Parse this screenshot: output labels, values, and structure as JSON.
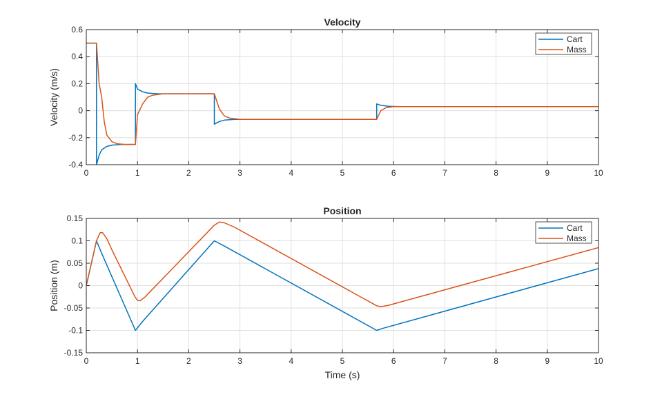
{
  "chart_data": [
    {
      "type": "line",
      "title": "Velocity",
      "xlabel": "",
      "ylabel": "Velocity (m/s)",
      "xlim": [
        0,
        10
      ],
      "ylim": [
        -0.4,
        0.6
      ],
      "xticks": [
        0,
        1,
        2,
        3,
        4,
        5,
        6,
        7,
        8,
        9,
        10
      ],
      "yticks": [
        -0.4,
        -0.2,
        0,
        0.2,
        0.4,
        0.6
      ],
      "yticklabels": [
        "-0.4",
        "-0.2",
        "0",
        "0.2",
        "0.4",
        "0.6"
      ],
      "grid": true,
      "legend": "top-right",
      "series": [
        {
          "name": "Cart",
          "color": "#0072BD",
          "points": [
            [
              0,
              0.5
            ],
            [
              0.2,
              0.5
            ],
            [
              0.2,
              -0.4
            ],
            [
              0.25,
              -0.33
            ],
            [
              0.3,
              -0.29
            ],
            [
              0.4,
              -0.265
            ],
            [
              0.5,
              -0.255
            ],
            [
              0.7,
              -0.25
            ],
            [
              0.96,
              -0.25
            ],
            [
              0.96,
              0.2
            ],
            [
              1.0,
              0.16
            ],
            [
              1.1,
              0.14
            ],
            [
              1.2,
              0.13
            ],
            [
              1.4,
              0.125
            ],
            [
              2.5,
              0.125
            ],
            [
              2.5,
              -0.1
            ],
            [
              2.6,
              -0.08
            ],
            [
              2.7,
              -0.07
            ],
            [
              2.9,
              -0.065
            ],
            [
              5.67,
              -0.065
            ],
            [
              5.67,
              0.05
            ],
            [
              5.75,
              0.04
            ],
            [
              5.9,
              0.032
            ],
            [
              6.1,
              0.03
            ],
            [
              10,
              0.03
            ]
          ]
        },
        {
          "name": "Mass",
          "color": "#D95319",
          "points": [
            [
              0,
              0.5
            ],
            [
              0.2,
              0.5
            ],
            [
              0.25,
              0.2
            ],
            [
              0.3,
              0.1
            ],
            [
              0.35,
              -0.08
            ],
            [
              0.4,
              -0.18
            ],
            [
              0.5,
              -0.23
            ],
            [
              0.6,
              -0.245
            ],
            [
              0.75,
              -0.25
            ],
            [
              0.96,
              -0.25
            ],
            [
              1.0,
              -0.03
            ],
            [
              1.1,
              0.05
            ],
            [
              1.2,
              0.1
            ],
            [
              1.3,
              0.115
            ],
            [
              1.5,
              0.125
            ],
            [
              2.5,
              0.125
            ],
            [
              2.6,
              0.01
            ],
            [
              2.7,
              -0.04
            ],
            [
              2.8,
              -0.055
            ],
            [
              3.0,
              -0.065
            ],
            [
              5.67,
              -0.065
            ],
            [
              5.75,
              0.0
            ],
            [
              5.85,
              0.022
            ],
            [
              6.0,
              0.03
            ],
            [
              10,
              0.03
            ]
          ]
        }
      ]
    },
    {
      "type": "line",
      "title": "Position",
      "xlabel": "Time (s)",
      "ylabel": "Position (m)",
      "xlim": [
        0,
        10
      ],
      "ylim": [
        -0.15,
        0.15
      ],
      "xticks": [
        0,
        1,
        2,
        3,
        4,
        5,
        6,
        7,
        8,
        9,
        10
      ],
      "yticks": [
        -0.15,
        -0.1,
        -0.05,
        0,
        0.05,
        0.1,
        0.15
      ],
      "yticklabels": [
        "-0.15",
        "-0.1",
        "-0.05",
        "0",
        "0.05",
        "0.1",
        "0.15"
      ],
      "grid": true,
      "legend": "top-right",
      "series": [
        {
          "name": "Cart",
          "color": "#0072BD",
          "points": [
            [
              0,
              0
            ],
            [
              0.2,
              0.1
            ],
            [
              0.3,
              0.072
            ],
            [
              0.96,
              -0.1
            ],
            [
              1.1,
              -0.08
            ],
            [
              2.5,
              0.1
            ],
            [
              2.7,
              0.088
            ],
            [
              5.67,
              -0.1
            ],
            [
              5.8,
              -0.095
            ],
            [
              10,
              0.038
            ]
          ]
        },
        {
          "name": "Mass",
          "color": "#D95319",
          "points": [
            [
              0,
              0
            ],
            [
              0.2,
              0.1
            ],
            [
              0.27,
              0.118
            ],
            [
              0.32,
              0.118
            ],
            [
              0.4,
              0.105
            ],
            [
              0.5,
              0.08
            ],
            [
              0.95,
              -0.025
            ],
            [
              1.0,
              -0.033
            ],
            [
              1.05,
              -0.034
            ],
            [
              1.15,
              -0.025
            ],
            [
              2.5,
              0.135
            ],
            [
              2.6,
              0.142
            ],
            [
              2.7,
              0.14
            ],
            [
              2.9,
              0.13
            ],
            [
              5.67,
              -0.045
            ],
            [
              5.75,
              -0.047
            ],
            [
              5.9,
              -0.044
            ],
            [
              10,
              0.085
            ]
          ]
        }
      ]
    }
  ]
}
